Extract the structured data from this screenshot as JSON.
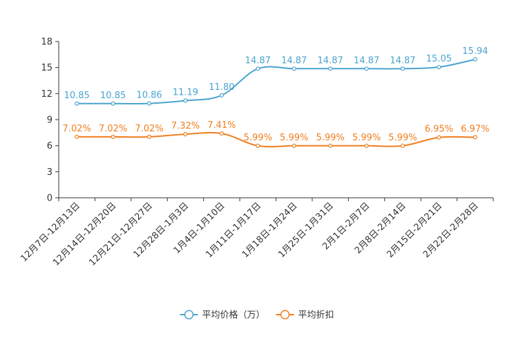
{
  "chart_data": {
    "type": "line",
    "title": "",
    "xlabel": "",
    "ylabel": "",
    "ylim": [
      0,
      18
    ],
    "yticks": [
      0,
      3,
      6,
      9,
      12,
      15,
      18
    ],
    "grid": false,
    "legend_position": "bottom-center",
    "categories": [
      "12月7日-12月13日",
      "12月14日-12月20日",
      "12月21日-12月27日",
      "12月28日-1月3日",
      "1月4日-1月10日",
      "1月11日-1月17日",
      "1月18日-1月24日",
      "1月25日-1月31日",
      "2月1日-2月7日",
      "2月8日-2月14日",
      "2月15日-2月21日",
      "2月22日-2月28日"
    ],
    "series": [
      {
        "name": "平均价格（万）",
        "color": "#4aa3cf",
        "values": [
          10.85,
          10.85,
          10.86,
          11.19,
          11.8,
          14.87,
          14.87,
          14.87,
          14.87,
          14.87,
          15.05,
          15.94
        ],
        "labels": [
          "10.85",
          "10.85",
          "10.86",
          "11.19",
          "11.80",
          "14.87",
          "14.87",
          "14.87",
          "14.87",
          "14.87",
          "15.05",
          "15.94"
        ]
      },
      {
        "name": "平均折扣",
        "color": "#f07e1e",
        "values": [
          7.02,
          7.02,
          7.02,
          7.32,
          7.41,
          5.99,
          5.99,
          5.99,
          5.99,
          5.99,
          6.95,
          6.97
        ],
        "labels": [
          "7.02%",
          "7.02%",
          "7.02%",
          "7.32%",
          "7.41%",
          "5.99%",
          "5.99%",
          "5.99%",
          "5.99%",
          "5.99%",
          "6.95%",
          "6.97%"
        ]
      }
    ]
  }
}
